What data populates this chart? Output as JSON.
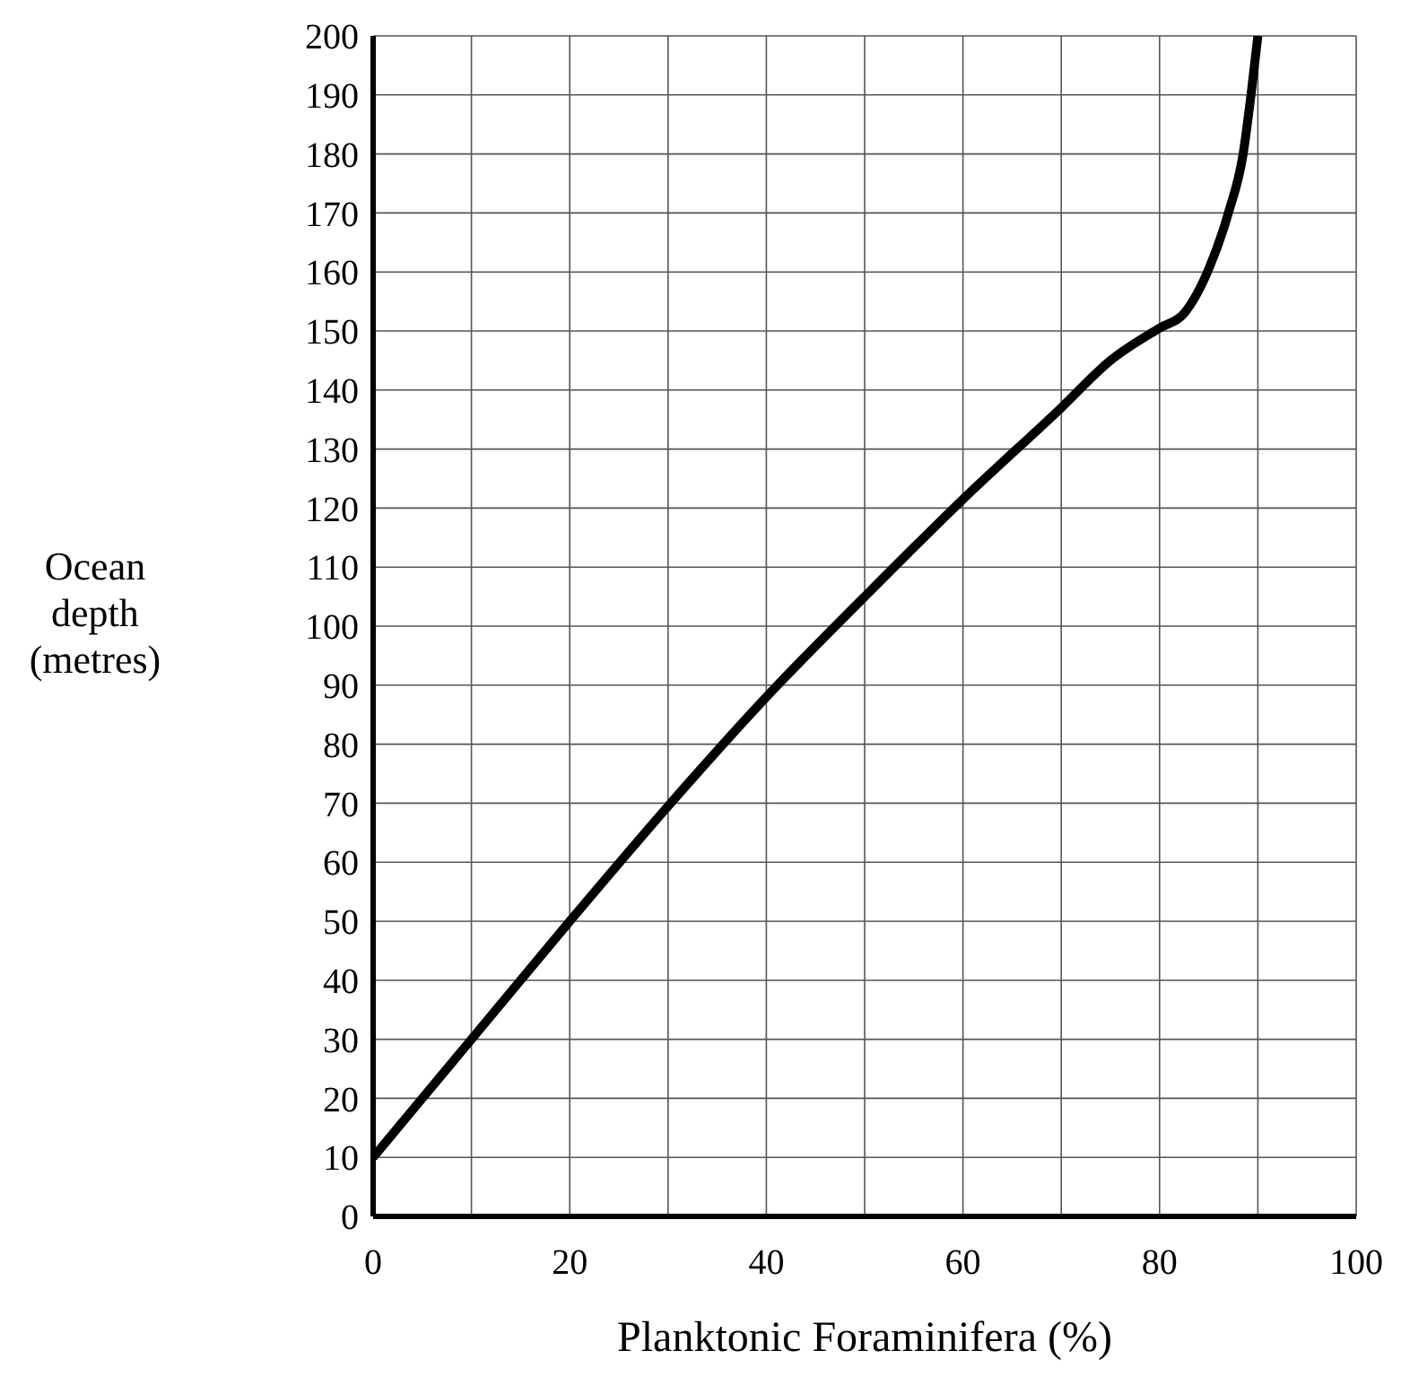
{
  "chart_data": {
    "type": "line",
    "xlabel": "Planktonic Foraminifera (%)",
    "ylabel": "Ocean depth (metres)",
    "x": [
      0,
      10,
      20,
      30,
      40,
      50,
      60,
      70,
      75,
      80,
      82.5,
      85,
      87,
      88.5,
      89.3,
      90
    ],
    "series": [
      {
        "color": "#000000",
        "values": [
          10,
          30,
          50,
          69.5,
          88,
          105,
          121.5,
          137,
          145,
          150.5,
          153,
          160.5,
          170,
          180,
          190,
          200
        ]
      }
    ],
    "xlim": [
      0,
      100
    ],
    "xticks": [
      0,
      {
        "value": 10,
        "label": null
      },
      20,
      {
        "value": 30,
        "label": null
      },
      40,
      {
        "value": 50,
        "label": null
      },
      60,
      {
        "value": 70,
        "label": null
      },
      80,
      {
        "value": 90,
        "label": null
      },
      100
    ],
    "ylim": [
      0,
      200
    ],
    "yticks": [
      0,
      10,
      20,
      30,
      40,
      50,
      60,
      70,
      80,
      90,
      100,
      110,
      120,
      130,
      140,
      150,
      160,
      170,
      180,
      190,
      200
    ],
    "grid": true,
    "marker": "none",
    "line_style": "solid",
    "legend": false
  }
}
